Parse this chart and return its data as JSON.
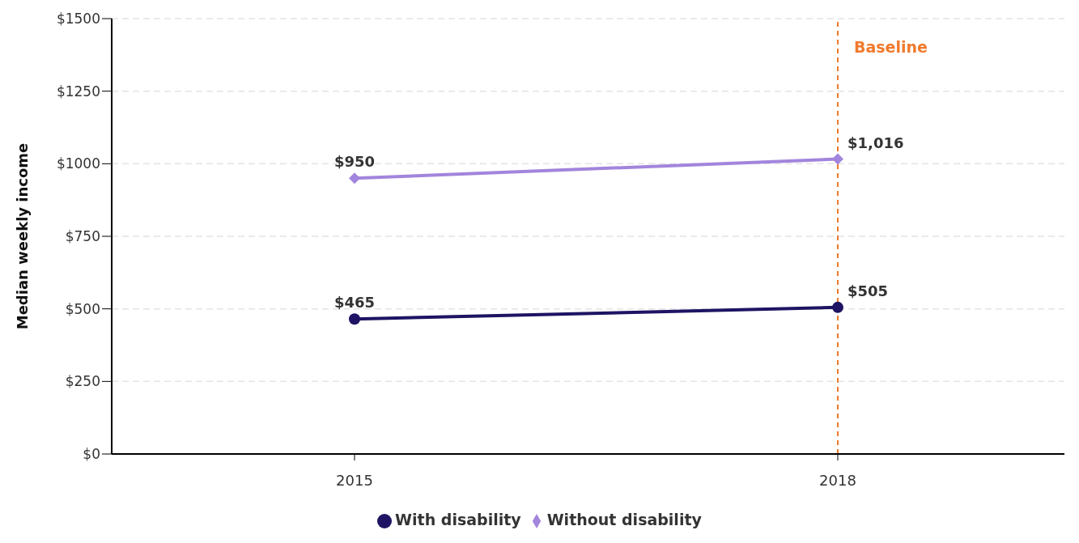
{
  "chart_data": {
    "type": "line",
    "ylabel": "Median weekly income",
    "categories": [
      "2015",
      "2018"
    ],
    "series": [
      {
        "name": "With disability",
        "color": "#1e1463",
        "values": [
          465,
          505
        ],
        "value_labels": [
          "$465",
          "$505"
        ],
        "marker": "circle"
      },
      {
        "name": "Without disability",
        "color": "#a285dc",
        "values": [
          950,
          1016
        ],
        "value_labels": [
          "$950",
          "$1,016"
        ],
        "marker": "diamond"
      }
    ],
    "ylim": [
      0,
      1500
    ],
    "yticks": [
      {
        "value": 0,
        "label": "$0"
      },
      {
        "value": 250,
        "label": "$250"
      },
      {
        "value": 500,
        "label": "$500"
      },
      {
        "value": 750,
        "label": "$750"
      },
      {
        "value": 1000,
        "label": "$1000"
      },
      {
        "value": 1250,
        "label": "$1250"
      },
      {
        "value": 1500,
        "label": "$1500"
      }
    ],
    "ref_lines": [
      {
        "axis": "x",
        "value": "2018",
        "label": "Baseline",
        "color": "#f07a2c",
        "line_style": "dashed"
      }
    ],
    "grid": "y",
    "legend": "bottom",
    "line_style": "solid"
  }
}
